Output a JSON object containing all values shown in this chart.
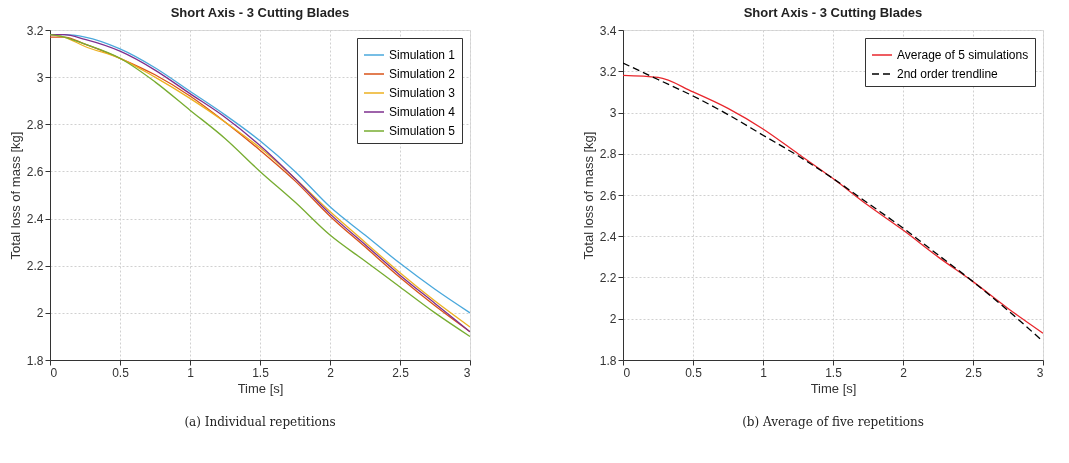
{
  "chart_data": [
    {
      "type": "line",
      "title": "Short Axis - 3 Cutting Blades",
      "xlabel": "Time [s]",
      "ylabel": "Total loss of mass [kg]",
      "x": [
        0,
        0.1,
        0.25,
        0.5,
        0.75,
        1,
        1.25,
        1.5,
        1.75,
        2,
        2.25,
        2.5,
        2.75,
        3
      ],
      "series": [
        {
          "name": "Simulation 1",
          "color": "#4aa8dc",
          "values": [
            3.18,
            3.18,
            3.17,
            3.12,
            3.04,
            2.94,
            2.84,
            2.73,
            2.6,
            2.45,
            2.33,
            2.21,
            2.1,
            2.0
          ]
        },
        {
          "name": "Simulation 2",
          "color": "#d95319",
          "values": [
            3.17,
            3.17,
            3.14,
            3.08,
            3.01,
            2.92,
            2.81,
            2.69,
            2.56,
            2.41,
            2.28,
            2.15,
            2.03,
            1.92
          ]
        },
        {
          "name": "Simulation 3",
          "color": "#edb120",
          "values": [
            3.18,
            3.17,
            3.13,
            3.08,
            3.0,
            2.91,
            2.81,
            2.7,
            2.57,
            2.43,
            2.3,
            2.17,
            2.05,
            1.94
          ]
        },
        {
          "name": "Simulation 4",
          "color": "#7e2f8e",
          "values": [
            3.18,
            3.18,
            3.16,
            3.11,
            3.03,
            2.93,
            2.83,
            2.71,
            2.57,
            2.42,
            2.29,
            2.16,
            2.04,
            1.92
          ]
        },
        {
          "name": "Simulation 5",
          "color": "#77ac30",
          "values": [
            3.18,
            3.17,
            3.14,
            3.08,
            2.98,
            2.86,
            2.74,
            2.6,
            2.47,
            2.33,
            2.22,
            2.11,
            2.0,
            1.9
          ]
        }
      ],
      "xlim": [
        0,
        3
      ],
      "ylim": [
        1.8,
        3.2
      ],
      "xticks": [
        0,
        0.5,
        1,
        1.5,
        2,
        2.5,
        3
      ],
      "yticks": [
        1.8,
        2,
        2.2,
        2.4,
        2.6,
        2.8,
        3,
        3.2
      ],
      "grid": true,
      "legend": "top right",
      "line_style": "solid",
      "annotations": [
        "(a) Individual repetitions"
      ]
    },
    {
      "type": "line",
      "title": "Short Axis - 3 Cutting Blades",
      "xlabel": "Time [s]",
      "ylabel": "Total loss of mass [kg]",
      "x": [
        0,
        0.25,
        0.5,
        0.75,
        1,
        1.25,
        1.5,
        1.75,
        2,
        2.25,
        2.5,
        2.75,
        3
      ],
      "series": [
        {
          "name": "Average of 5 simulations",
          "color": "#e8262c",
          "line_style": "solid",
          "values": [
            3.18,
            3.17,
            3.1,
            3.02,
            2.92,
            2.8,
            2.68,
            2.55,
            2.43,
            2.3,
            2.18,
            2.05,
            1.93
          ]
        },
        {
          "name": "2nd order trendline",
          "color": "#000000",
          "line_style": "dashed",
          "values": [
            3.24,
            3.16,
            3.08,
            2.99,
            2.89,
            2.79,
            2.68,
            2.56,
            2.44,
            2.31,
            2.18,
            2.04,
            1.89
          ]
        }
      ],
      "xlim": [
        0,
        3
      ],
      "ylim": [
        1.8,
        3.4
      ],
      "xticks": [
        0,
        0.5,
        1,
        1.5,
        2,
        2.5,
        3
      ],
      "yticks": [
        1.8,
        2,
        2.2,
        2.4,
        2.6,
        2.8,
        3,
        3.2,
        3.4
      ],
      "grid": true,
      "legend": "top right",
      "annotations": [
        "(b) Average of five repetitions"
      ]
    }
  ]
}
